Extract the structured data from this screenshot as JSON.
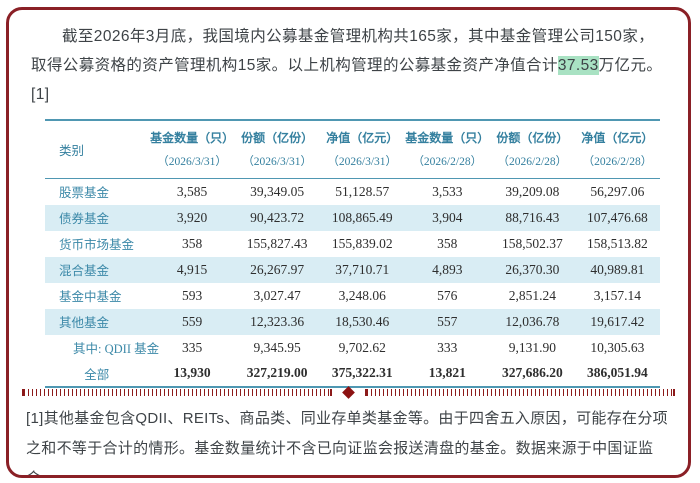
{
  "page": {
    "border_color": "#8a2026",
    "accent_teal": "#3c89a8",
    "rule_color": "#4f97b2",
    "stripe_color": "#d9edf4",
    "highlight_color": "#a9e2c3",
    "divider_color": "#8c1212"
  },
  "intro": {
    "text_before": "截至2026年3月底，我国境内公募基金管理机构共165家，其中基金管理公司150家，取得公募资格的资产管理机构15家。以上机构管理的公募基金资产净值合计",
    "highlight": "37.53",
    "text_after": "万亿元。",
    "ref_marker": "[1]"
  },
  "table": {
    "category_header": "类别",
    "columns": [
      {
        "label": "基金数量（只）",
        "date": "（2026/3/31）"
      },
      {
        "label": "份额（亿份）",
        "date": "（2026/3/31）"
      },
      {
        "label": "净值（亿元）",
        "date": "（2026/3/31）"
      },
      {
        "label": "基金数量（只）",
        "date": "（2026/2/28）"
      },
      {
        "label": "份额（亿份）",
        "date": "（2026/2/28）"
      },
      {
        "label": "净值（亿元）",
        "date": "（2026/2/28）"
      }
    ],
    "rows": [
      {
        "category": "股票基金",
        "values": [
          "3,585",
          "39,349.05",
          "51,128.57",
          "3,533",
          "39,209.08",
          "56,297.06"
        ],
        "striped": false,
        "style": ""
      },
      {
        "category": "债券基金",
        "values": [
          "3,920",
          "90,423.72",
          "108,865.49",
          "3,904",
          "88,716.43",
          "107,476.68"
        ],
        "striped": true,
        "style": ""
      },
      {
        "category": "货币市场基金",
        "values": [
          "358",
          "155,827.43",
          "155,839.02",
          "358",
          "158,502.37",
          "158,513.82"
        ],
        "striped": false,
        "style": ""
      },
      {
        "category": "混合基金",
        "values": [
          "4,915",
          "26,267.97",
          "37,710.71",
          "4,893",
          "26,370.30",
          "40,989.81"
        ],
        "striped": true,
        "style": ""
      },
      {
        "category": "基金中基金",
        "values": [
          "593",
          "3,027.47",
          "3,248.06",
          "576",
          "2,851.24",
          "3,157.14"
        ],
        "striped": false,
        "style": ""
      },
      {
        "category": "其他基金",
        "values": [
          "559",
          "12,323.36",
          "18,530.46",
          "557",
          "12,036.78",
          "19,617.42"
        ],
        "striped": true,
        "style": ""
      },
      {
        "category": "其中: QDII 基金",
        "values": [
          "335",
          "9,345.95",
          "9,702.62",
          "333",
          "9,131.90",
          "10,305.63"
        ],
        "striped": false,
        "style": "indent"
      },
      {
        "category": "全部",
        "values": [
          "13,930",
          "327,219.00",
          "375,322.31",
          "13,821",
          "327,686.20",
          "386,051.94"
        ],
        "striped": false,
        "style": "total"
      }
    ]
  },
  "footnote": {
    "text": "[1]其他基金包含QDII、REITs、商品类、同业存单类基金等。由于四舍五入原因，可能存在分项之和不等于合计的情形。基金数量统计不含已向证监会报送清盘的基金。数据来源于中国证监会。"
  }
}
